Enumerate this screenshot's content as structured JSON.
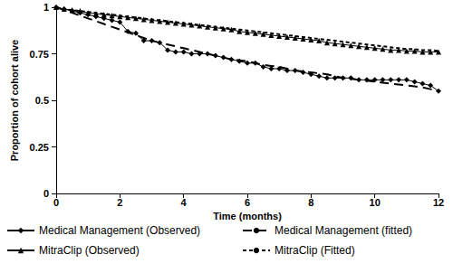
{
  "chart_data": {
    "type": "line",
    "x_label": "Time (months)",
    "y_label": "Proportion of cohort alive",
    "x": [
      0,
      0.25,
      0.5,
      0.75,
      1,
      1.25,
      1.5,
      1.75,
      2,
      2.25,
      2.5,
      2.75,
      3,
      3.25,
      3.5,
      3.75,
      4,
      4.25,
      4.5,
      4.75,
      5,
      5.25,
      5.5,
      5.75,
      6,
      6.25,
      6.5,
      6.75,
      7,
      7.25,
      7.5,
      7.75,
      8,
      8.25,
      8.5,
      8.75,
      9,
      9.25,
      9.5,
      9.75,
      10,
      10.25,
      10.5,
      10.75,
      11,
      11.25,
      11.5,
      11.75,
      12
    ],
    "series": [
      {
        "name": "Medical Management (Observed)",
        "color": "#000000",
        "marker": "diamond",
        "line_style": "solid",
        "values": [
          1,
          0.99,
          0.98,
          0.97,
          0.96,
          0.95,
          0.94,
          0.93,
          0.92,
          0.87,
          0.86,
          0.82,
          0.82,
          0.81,
          0.77,
          0.76,
          0.76,
          0.75,
          0.75,
          0.75,
          0.74,
          0.73,
          0.72,
          0.71,
          0.7,
          0.7,
          0.68,
          0.67,
          0.67,
          0.66,
          0.66,
          0.65,
          0.64,
          0.63,
          0.62,
          0.62,
          0.62,
          0.62,
          0.61,
          0.61,
          0.61,
          0.61,
          0.61,
          0.61,
          0.61,
          0.6,
          0.59,
          0.58,
          0.55
        ]
      },
      {
        "name": "Medical Management (fitted)",
        "color": "#000000",
        "marker": "none",
        "line_style": "dashed",
        "values": [
          1,
          0.985,
          0.97,
          0.955,
          0.94,
          0.925,
          0.91,
          0.895,
          0.88,
          0.865,
          0.85,
          0.835,
          0.82,
          0.81,
          0.8,
          0.79,
          0.78,
          0.77,
          0.76,
          0.75,
          0.74,
          0.73,
          0.72,
          0.715,
          0.71,
          0.7,
          0.69,
          0.685,
          0.68,
          0.67,
          0.66,
          0.655,
          0.65,
          0.645,
          0.64,
          0.63,
          0.62,
          0.615,
          0.61,
          0.605,
          0.6,
          0.595,
          0.59,
          0.585,
          0.58,
          0.575,
          0.57,
          0.56,
          0.55
        ]
      },
      {
        "name": "MitraClip (Observed)",
        "color": "#000000",
        "marker": "triangle",
        "line_style": "solid",
        "values": [
          1,
          0.99,
          0.985,
          0.98,
          0.97,
          0.965,
          0.96,
          0.955,
          0.95,
          0.945,
          0.94,
          0.935,
          0.93,
          0.925,
          0.92,
          0.915,
          0.91,
          0.905,
          0.9,
          0.895,
          0.89,
          0.885,
          0.88,
          0.87,
          0.865,
          0.86,
          0.855,
          0.85,
          0.845,
          0.84,
          0.835,
          0.83,
          0.825,
          0.82,
          0.81,
          0.805,
          0.8,
          0.795,
          0.79,
          0.785,
          0.78,
          0.775,
          0.77,
          0.77,
          0.765,
          0.765,
          0.76,
          0.76,
          0.76
        ]
      },
      {
        "name": "MitraClip (Fitted)",
        "color": "#000000",
        "marker": "none",
        "line_style": "shortdash",
        "values": [
          1,
          0.99,
          0.985,
          0.98,
          0.975,
          0.97,
          0.965,
          0.96,
          0.955,
          0.95,
          0.945,
          0.94,
          0.935,
          0.93,
          0.925,
          0.92,
          0.915,
          0.91,
          0.905,
          0.9,
          0.895,
          0.89,
          0.885,
          0.88,
          0.875,
          0.87,
          0.865,
          0.86,
          0.855,
          0.85,
          0.845,
          0.84,
          0.835,
          0.83,
          0.825,
          0.82,
          0.815,
          0.81,
          0.805,
          0.8,
          0.795,
          0.79,
          0.785,
          0.78,
          0.775,
          0.775,
          0.77,
          0.77,
          0.765
        ]
      }
    ],
    "xlim": [
      0,
      12
    ],
    "xticks": [
      0,
      2,
      4,
      6,
      8,
      10,
      12
    ],
    "ylim": [
      0,
      1
    ],
    "yticks": [
      0,
      0.25,
      0.5,
      0.75,
      1
    ],
    "grid": false,
    "legend": "bottom"
  }
}
